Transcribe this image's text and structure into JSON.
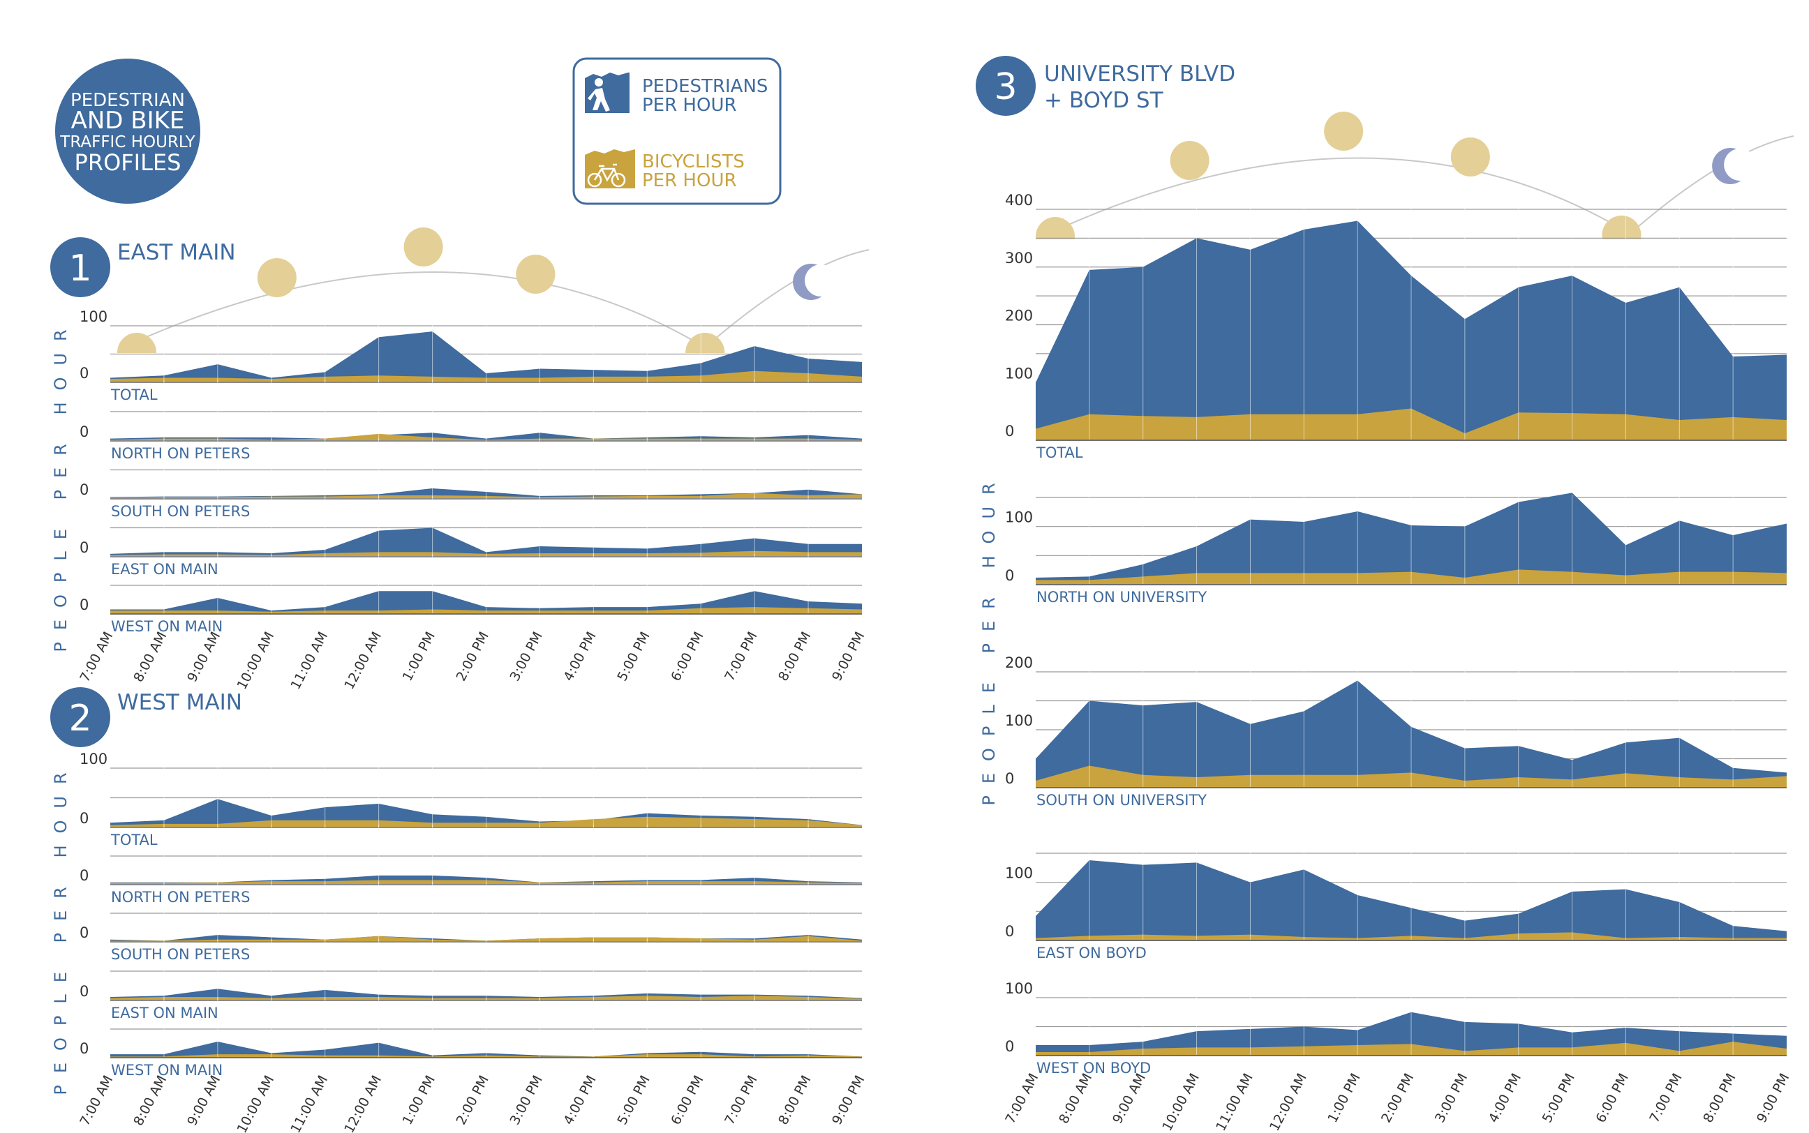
{
  "title": {
    "line1": "PEDESTRIAN",
    "line2": "AND BIKE",
    "line3": "TRAFFIC HOURLY",
    "line4": "PROFILES"
  },
  "legend": {
    "ped_line1": "PEDESTRIANS",
    "ped_line2": "PER HOUR",
    "bike_line1": "BICYCLISTS",
    "bike_line2": "PER HOUR",
    "ped_icon": "pedestrian-icon",
    "bike_icon": "bicycle-icon"
  },
  "colors": {
    "ped": "#3f6b9e",
    "bike": "#c9a33d",
    "sun": "#e4cf96",
    "moon": "#8f9bc5",
    "grid": "#c8c8c8",
    "text_blue": "#3f6b9e"
  },
  "axis_label": "PEOPLE PER HOUR",
  "x_labels": [
    "7:00 AM",
    "8:00 AM",
    "9:00 AM",
    "10:00 AM",
    "11:00 AM",
    "12:00 AM",
    "1:00 PM",
    "2:00 PM",
    "3:00 PM",
    "4:00 PM",
    "5:00 PM",
    "6:00 PM",
    "7:00 PM",
    "8:00 PM",
    "9:00 PM"
  ],
  "chart_data": [
    {
      "type": "area",
      "number": "1",
      "title": "EAST MAIN",
      "panels": [
        {
          "label": "TOTAL",
          "ticks": [
            0,
            100
          ],
          "ymax": 100,
          "ped": [
            8,
            12,
            32,
            8,
            18,
            80,
            90,
            16,
            24,
            22,
            20,
            34,
            64,
            42,
            36
          ],
          "bike": [
            6,
            8,
            8,
            6,
            10,
            12,
            10,
            8,
            8,
            10,
            10,
            12,
            20,
            16,
            10
          ]
        },
        {
          "label": "NORTH ON PETERS",
          "ticks": [
            0
          ],
          "ymax": 100,
          "ped": [
            4,
            6,
            6,
            6,
            4,
            10,
            14,
            4,
            14,
            4,
            6,
            8,
            6,
            10,
            4
          ],
          "bike": [
            2,
            4,
            4,
            2,
            4,
            12,
            6,
            2,
            4,
            4,
            4,
            4,
            4,
            4,
            2
          ]
        },
        {
          "label": "SOUTH ON PETERS",
          "ticks": [
            0
          ],
          "ymax": 100,
          "ped": [
            3,
            4,
            4,
            5,
            6,
            8,
            18,
            12,
            5,
            6,
            6,
            8,
            10,
            16,
            8
          ],
          "bike": [
            2,
            3,
            3,
            4,
            4,
            6,
            6,
            5,
            3,
            4,
            5,
            5,
            10,
            6,
            8
          ]
        },
        {
          "label": "EAST ON MAIN",
          "ticks": [
            0
          ],
          "ymax": 100,
          "ped": [
            5,
            8,
            8,
            6,
            12,
            45,
            50,
            8,
            18,
            16,
            14,
            22,
            32,
            22,
            22
          ],
          "bike": [
            3,
            4,
            4,
            3,
            6,
            8,
            8,
            5,
            6,
            6,
            6,
            7,
            10,
            8,
            8
          ]
        },
        {
          "label": "WEST ON MAIN",
          "ticks": [
            0
          ],
          "ymax": 100,
          "ped": [
            8,
            8,
            28,
            6,
            12,
            40,
            40,
            12,
            10,
            12,
            12,
            18,
            40,
            22,
            18
          ],
          "bike": [
            6,
            6,
            6,
            4,
            6,
            6,
            8,
            6,
            6,
            6,
            6,
            10,
            12,
            10,
            8
          ]
        }
      ]
    },
    {
      "type": "area",
      "number": "2",
      "title": "WEST MAIN",
      "panels": [
        {
          "label": "TOTAL",
          "ticks": [
            0,
            100
          ],
          "ymax": 100,
          "ped": [
            8,
            12,
            48,
            20,
            34,
            40,
            22,
            18,
            10,
            12,
            24,
            20,
            18,
            14,
            4
          ],
          "bike": [
            4,
            6,
            6,
            12,
            12,
            12,
            8,
            8,
            8,
            14,
            18,
            16,
            14,
            12,
            4
          ]
        },
        {
          "label": "NORTH ON PETERS",
          "ticks": [
            0
          ],
          "ymax": 100,
          "ped": [
            4,
            4,
            4,
            8,
            10,
            16,
            16,
            12,
            4,
            6,
            8,
            8,
            12,
            6,
            4
          ],
          "bike": [
            3,
            3,
            4,
            6,
            6,
            8,
            8,
            8,
            4,
            4,
            6,
            6,
            6,
            4,
            3
          ]
        },
        {
          "label": "SOUTH ON PETERS",
          "ticks": [
            0
          ],
          "ymax": 100,
          "ped": [
            4,
            2,
            12,
            8,
            4,
            10,
            6,
            2,
            6,
            8,
            8,
            6,
            6,
            12,
            4
          ],
          "bike": [
            2,
            2,
            4,
            4,
            4,
            10,
            4,
            2,
            6,
            8,
            8,
            6,
            4,
            10,
            2
          ]
        },
        {
          "label": "EAST ON MAIN",
          "ticks": [
            0
          ],
          "ymax": 100,
          "ped": [
            6,
            8,
            20,
            8,
            18,
            10,
            8,
            8,
            6,
            8,
            12,
            10,
            10,
            8,
            4
          ],
          "bike": [
            4,
            6,
            6,
            4,
            6,
            6,
            4,
            4,
            4,
            6,
            8,
            6,
            8,
            6,
            3
          ]
        },
        {
          "label": "WEST ON MAIN",
          "ticks": [
            0
          ],
          "ymax": 100,
          "ped": [
            6,
            6,
            28,
            8,
            14,
            26,
            4,
            8,
            4,
            2,
            8,
            10,
            6,
            6,
            2
          ],
          "bike": [
            2,
            2,
            6,
            6,
            4,
            4,
            2,
            4,
            2,
            2,
            6,
            6,
            2,
            4,
            2
          ]
        }
      ]
    },
    {
      "type": "area",
      "number": "3",
      "title_line1": "UNIVERSITY BLVD",
      "title_line2": "+ BOYD ST",
      "panels": [
        {
          "label": "TOTAL",
          "ticks": [
            0,
            100,
            200,
            300,
            400
          ],
          "ymax": 400,
          "ped": [
            100,
            295,
            300,
            350,
            330,
            365,
            380,
            285,
            210,
            265,
            285,
            238,
            265,
            145,
            148
          ],
          "bike": [
            20,
            45,
            42,
            40,
            45,
            45,
            45,
            55,
            12,
            48,
            47,
            45,
            35,
            40,
            35
          ]
        },
        {
          "label": "NORTH ON UNIVERSITY",
          "ticks": [
            0,
            100
          ],
          "ymax": 150,
          "ped": [
            12,
            14,
            35,
            66,
            112,
            108,
            126,
            102,
            100,
            142,
            158,
            68,
            110,
            85,
            105
          ],
          "bike": [
            8,
            8,
            14,
            20,
            20,
            20,
            20,
            22,
            12,
            26,
            22,
            16,
            22,
            22,
            20
          ]
        },
        {
          "label": "SOUTH ON UNIVERSITY",
          "ticks": [
            0,
            100,
            200
          ],
          "ymax": 200,
          "ped": [
            50,
            150,
            142,
            148,
            110,
            132,
            185,
            105,
            68,
            72,
            48,
            78,
            86,
            34,
            26
          ],
          "bike": [
            12,
            38,
            22,
            18,
            22,
            22,
            22,
            26,
            12,
            18,
            14,
            25,
            18,
            14,
            20
          ]
        },
        {
          "label": "EAST ON BOYD",
          "ticks": [
            0,
            100
          ],
          "ymax": 150,
          "ped": [
            42,
            138,
            130,
            134,
            100,
            122,
            78,
            56,
            34,
            46,
            84,
            88,
            66,
            25,
            16
          ],
          "bike": [
            4,
            8,
            10,
            8,
            10,
            6,
            4,
            8,
            4,
            12,
            14,
            4,
            6,
            4,
            4
          ]
        },
        {
          "label": "WEST ON BOYD",
          "ticks": [
            0,
            100
          ],
          "ymax": 100,
          "ped": [
            18,
            18,
            24,
            42,
            46,
            50,
            44,
            75,
            58,
            55,
            40,
            48,
            42,
            38,
            34
          ],
          "bike": [
            6,
            6,
            12,
            14,
            14,
            16,
            18,
            20,
            8,
            14,
            14,
            22,
            8,
            24,
            12
          ]
        }
      ]
    }
  ]
}
